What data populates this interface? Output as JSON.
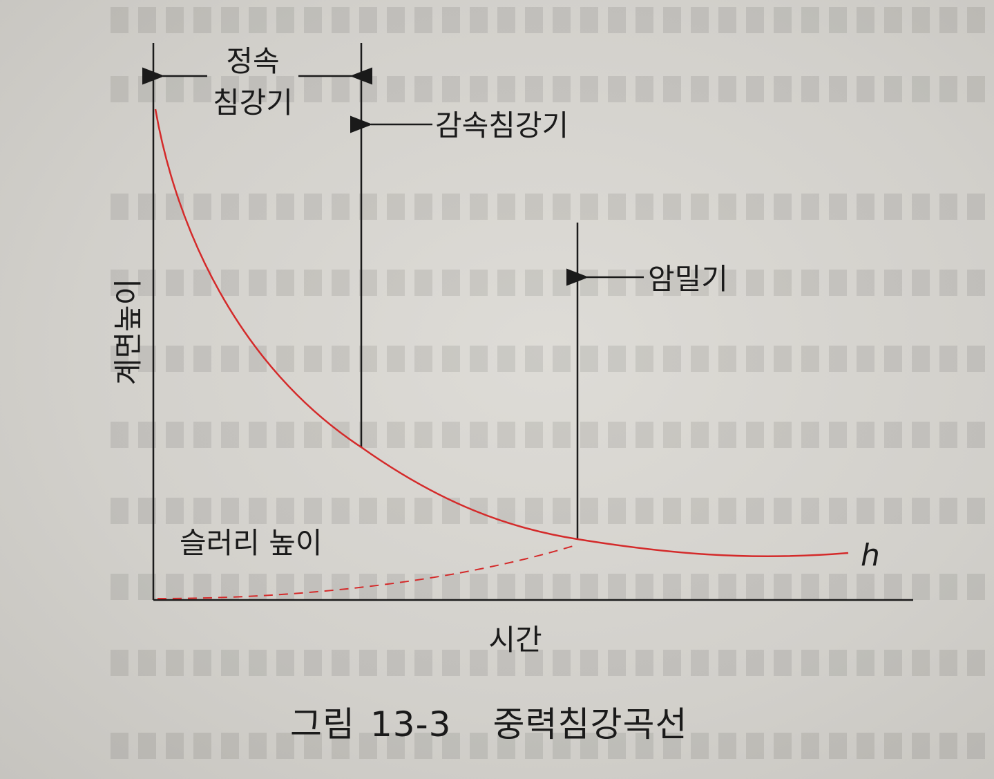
{
  "labels": {
    "constant_rate": [
      "정속",
      "침강기"
    ],
    "decreasing_rate": "감속침강기",
    "compression": "암밀기",
    "y_axis": "계면높이",
    "x_axis": "시간",
    "slurry_height": "슬러리 높이",
    "h": "h"
  },
  "caption": {
    "figure": "그림",
    "number": "13-3",
    "title": "중력침강곡선"
  },
  "colors": {
    "curve": "#d42a2a",
    "lines": "#1a1a1a",
    "background": "#d8d6d1"
  }
}
